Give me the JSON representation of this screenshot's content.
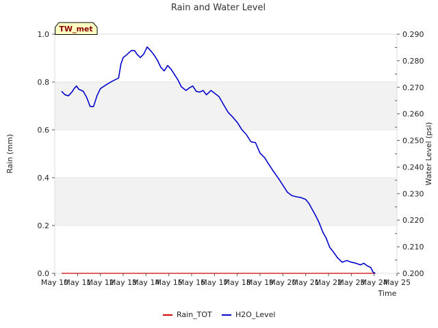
{
  "chart_data": {
    "type": "line",
    "title": "Rain and Water Level",
    "station_label": "TW_met",
    "xlabel": "Time",
    "ylabel_left": "Rain (mm)",
    "ylabel_right": "Water Level (psi)",
    "x_ticks": [
      "May 10",
      "May 11",
      "May 12",
      "May 13",
      "May 14",
      "May 15",
      "May 16",
      "May 17",
      "May 18",
      "May 19",
      "May 20",
      "May 21",
      "May 22",
      "May 23",
      "May 24",
      "May 25"
    ],
    "xlim": [
      10,
      25
    ],
    "ylim_left": [
      0.0,
      1.0
    ],
    "ylim_right": [
      0.2,
      0.29
    ],
    "y_ticks_left": [
      "0.0",
      "0.2",
      "0.4",
      "0.6",
      "0.8",
      "1.0"
    ],
    "y_ticks_right": [
      "0.200",
      "0.210",
      "0.220",
      "0.230",
      "0.240",
      "0.250",
      "0.260",
      "0.270",
      "0.280",
      "0.290"
    ],
    "grid": true,
    "legend_position": "bottom",
    "series": [
      {
        "name": "Rain_TOT",
        "axis": "left",
        "color": "#cc0000",
        "x": [
          10.3,
          24.05
        ],
        "y": [
          0.0,
          0.0
        ]
      },
      {
        "name": "H2O_Level",
        "axis": "right",
        "color": "#0000cc",
        "x": [
          10.3,
          10.45,
          10.6,
          10.75,
          10.85,
          10.95,
          11.05,
          11.25,
          11.4,
          11.55,
          11.7,
          11.85,
          12.0,
          12.3,
          12.5,
          12.8,
          12.9,
          13.0,
          13.15,
          13.35,
          13.5,
          13.6,
          13.75,
          13.9,
          14.05,
          14.2,
          14.35,
          14.5,
          14.65,
          14.8,
          14.95,
          15.1,
          15.25,
          15.4,
          15.55,
          15.75,
          15.9,
          16.05,
          16.2,
          16.35,
          16.5,
          16.65,
          16.85,
          17.0,
          17.2,
          17.4,
          17.6,
          17.8,
          18.0,
          18.2,
          18.4,
          18.6,
          18.8,
          19.0,
          19.2,
          19.4,
          19.6,
          19.8,
          20.0,
          20.2,
          20.4,
          20.6,
          20.8,
          21.0,
          21.15,
          21.3,
          21.45,
          21.6,
          21.75,
          21.9,
          22.05,
          22.2,
          22.4,
          22.6,
          22.8,
          23.0,
          23.2,
          23.4,
          23.55,
          23.7,
          23.85,
          23.95,
          24.05
        ],
        "y": [
          0.2685,
          0.2672,
          0.2668,
          0.2682,
          0.2695,
          0.2705,
          0.2693,
          0.2685,
          0.2662,
          0.2628,
          0.2628,
          0.2668,
          0.2695,
          0.2712,
          0.2722,
          0.2735,
          0.2788,
          0.2812,
          0.2822,
          0.2838,
          0.2838,
          0.2825,
          0.2812,
          0.2825,
          0.2852,
          0.2838,
          0.2822,
          0.2802,
          0.2775,
          0.2762,
          0.2782,
          0.2768,
          0.2748,
          0.2728,
          0.2702,
          0.2688,
          0.2698,
          0.2705,
          0.2685,
          0.2682,
          0.2688,
          0.2672,
          0.2688,
          0.2678,
          0.2665,
          0.2635,
          0.2606,
          0.2588,
          0.2568,
          0.2541,
          0.2522,
          0.2495,
          0.2492,
          0.2452,
          0.2435,
          0.2408,
          0.2382,
          0.2358,
          0.2332,
          0.2305,
          0.2292,
          0.2288,
          0.2285,
          0.2278,
          0.2262,
          0.2238,
          0.2215,
          0.2188,
          0.2155,
          0.2132,
          0.2098,
          0.2082,
          0.2058,
          0.2042,
          0.2048,
          0.2042,
          0.2038,
          0.2032,
          0.2038,
          0.2028,
          0.2022,
          0.2005,
          0.2
        ]
      }
    ]
  }
}
